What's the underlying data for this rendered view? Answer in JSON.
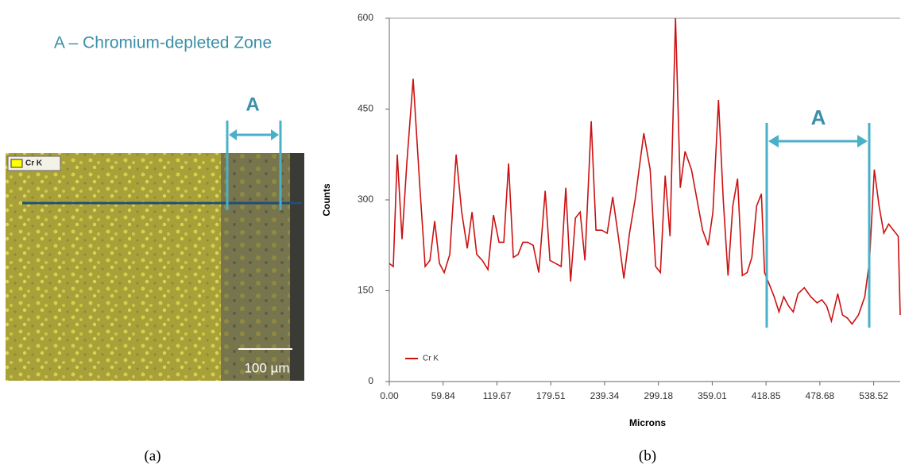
{
  "panel_a": {
    "title": "A – Chromium-depleted Zone",
    "marker": "A",
    "legend": "Cr K",
    "scale_bar": "100 µm",
    "caption": "(a)"
  },
  "panel_b": {
    "caption": "(b)"
  },
  "chart_data": {
    "type": "line",
    "x_label": "Microns",
    "y_label": "Counts",
    "annotation": "A",
    "x": [
      0,
      4.4,
      8.8,
      14.1,
      19.4,
      26.5,
      33.6,
      39.8,
      45.1,
      50.4,
      55.7,
      61.0,
      67.2,
      74.3,
      80.5,
      86.7,
      92.0,
      97.2,
      103.4,
      109.6,
      115.8,
      122.0,
      127.3,
      132.6,
      137.9,
      143.2,
      148.5,
      153.8,
      160.0,
      166.2,
      173.3,
      178.6,
      184.8,
      191.0,
      196.2,
      201.6,
      206.9,
      212.2,
      217.5,
      224.5,
      229.8,
      236.0,
      242.2,
      248.4,
      254.6,
      260.8,
      267.0,
      273.2,
      282.9,
      290.0,
      296.1,
      301.4,
      306.7,
      312.1,
      318.2,
      323.5,
      328.8,
      335.9,
      342.1,
      348.3,
      354.5,
      359.8,
      366.0,
      371.3,
      376.6,
      381.9,
      387.2,
      392.5,
      397.8,
      403.1,
      408.4,
      413.7,
      417.2,
      422.6,
      427.9,
      433.2,
      438.5,
      443.8,
      449.1,
      454.4,
      461.4,
      468.5,
      475.6,
      480.9,
      486.2,
      491.5,
      498.6,
      503.9,
      509.2,
      514.5,
      521.6,
      528.6,
      533.9,
      539.2,
      544.5,
      549.8,
      555.2,
      560.5,
      565.8,
      568
    ],
    "series": [
      {
        "name": "Cr K",
        "color": "#cc1111",
        "values": [
          195,
          190,
          375,
          235,
          360,
          500,
          330,
          190,
          200,
          265,
          195,
          180,
          210,
          375,
          280,
          220,
          280,
          210,
          200,
          185,
          275,
          230,
          230,
          360,
          205,
          210,
          230,
          230,
          225,
          180,
          315,
          200,
          195,
          190,
          320,
          165,
          270,
          280,
          200,
          430,
          250,
          250,
          245,
          305,
          240,
          170,
          245,
          300,
          410,
          350,
          190,
          180,
          340,
          240,
          600,
          320,
          380,
          350,
          300,
          250,
          225,
          280,
          465,
          300,
          175,
          290,
          335,
          175,
          180,
          205,
          290,
          310,
          180,
          160,
          140,
          115,
          140,
          125,
          115,
          145,
          155,
          140,
          130,
          135,
          125,
          100,
          145,
          110,
          105,
          95,
          110,
          140,
          200,
          350,
          290,
          245,
          260,
          250,
          240,
          110
        ]
      }
    ],
    "xlim": [
      0,
      568
    ],
    "ylim": [
      0,
      600
    ],
    "xticks": [
      {
        "value": 0,
        "label": "0.00"
      },
      59.84,
      119.67,
      179.51,
      239.34,
      299.18,
      359.01,
      418.85,
      478.68,
      538.52
    ],
    "yticks": [
      0,
      150,
      300,
      450,
      600
    ],
    "legend": "lower left"
  }
}
